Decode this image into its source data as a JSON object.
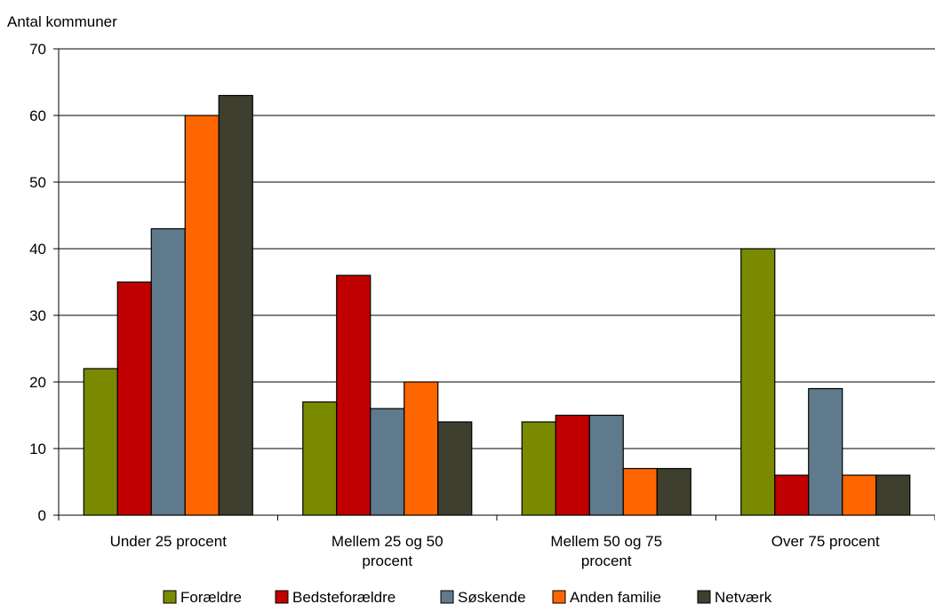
{
  "chart_data": {
    "type": "bar",
    "title": "",
    "ylabel": "Antal kommuner",
    "xlabel": "",
    "ylim": [
      0,
      70
    ],
    "yticks": [
      0,
      10,
      20,
      30,
      40,
      50,
      60,
      70
    ],
    "grid": true,
    "legend_position": "bottom",
    "categories": [
      [
        "Under 25 procent"
      ],
      [
        "Mellem 25 og 50",
        "procent"
      ],
      [
        "Mellem 50 og 75",
        "procent"
      ],
      [
        "Over 75 procent"
      ]
    ],
    "series": [
      {
        "name": "Forældre",
        "color": "#7a8a00",
        "values": [
          22,
          17,
          14,
          40
        ]
      },
      {
        "name": "Bedsteforældre",
        "color": "#c00000",
        "values": [
          35,
          36,
          15,
          6
        ]
      },
      {
        "name": "Søskende",
        "color": "#5f7a8c",
        "values": [
          43,
          16,
          15,
          19
        ]
      },
      {
        "name": "Anden familie",
        "color": "#ff6600",
        "values": [
          60,
          20,
          7,
          6
        ]
      },
      {
        "name": "Netværk",
        "color": "#3f3f2f",
        "values": [
          63,
          14,
          7,
          6
        ]
      }
    ]
  }
}
